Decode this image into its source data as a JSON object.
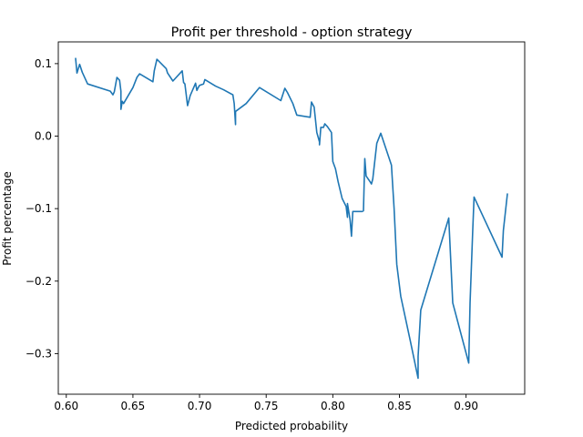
{
  "chart_data": {
    "type": "line",
    "title": "Profit per threshold - option strategy",
    "xlabel": "Predicted probability",
    "ylabel": "Profit percentage",
    "xlim": [
      0.594,
      0.944
    ],
    "ylim": [
      -0.356,
      0.13
    ],
    "xticks": [
      0.6,
      0.65,
      0.7,
      0.75,
      0.8,
      0.85,
      0.9
    ],
    "xtick_labels": [
      "0.60",
      "0.65",
      "0.70",
      "0.75",
      "0.80",
      "0.85",
      "0.90"
    ],
    "yticks": [
      0.1,
      0.0,
      -0.1,
      -0.2,
      -0.3
    ],
    "ytick_labels": [
      "0.1",
      "0.0",
      "−0.1",
      "−0.2",
      "−0.3"
    ],
    "grid": false,
    "line_color": "#1f77b4",
    "series": [
      {
        "x": [
          0.607,
          0.608,
          0.61,
          0.612,
          0.616,
          0.633,
          0.635,
          0.636,
          0.638,
          0.64,
          0.641,
          0.641,
          0.642,
          0.643,
          0.65,
          0.653,
          0.655,
          0.665,
          0.666,
          0.668,
          0.675,
          0.676,
          0.68,
          0.687,
          0.688,
          0.689,
          0.691,
          0.693,
          0.697,
          0.698,
          0.699,
          0.7,
          0.703,
          0.704,
          0.712,
          0.718,
          0.725,
          0.726,
          0.727,
          0.727,
          0.735,
          0.745,
          0.761,
          0.764,
          0.766,
          0.77,
          0.773,
          0.783,
          0.784,
          0.786,
          0.788,
          0.79,
          0.79,
          0.791,
          0.793,
          0.794,
          0.796,
          0.799,
          0.8,
          0.802,
          0.804,
          0.807,
          0.81,
          0.811,
          0.811,
          0.813,
          0.814,
          0.815,
          0.822,
          0.823,
          0.824,
          0.825,
          0.828,
          0.829,
          0.83,
          0.833,
          0.836,
          0.844,
          0.846,
          0.848,
          0.851,
          0.858,
          0.864,
          0.864,
          0.866,
          0.887,
          0.89,
          0.902,
          0.903,
          0.905,
          0.906,
          0.927,
          0.928,
          0.931
        ],
        "y": [
          0.107,
          0.087,
          0.099,
          0.088,
          0.072,
          0.062,
          0.057,
          0.061,
          0.081,
          0.077,
          0.062,
          0.037,
          0.048,
          0.045,
          0.067,
          0.081,
          0.086,
          0.075,
          0.09,
          0.106,
          0.093,
          0.087,
          0.076,
          0.09,
          0.074,
          0.072,
          0.042,
          0.056,
          0.073,
          0.063,
          0.067,
          0.07,
          0.072,
          0.078,
          0.069,
          0.064,
          0.057,
          0.045,
          0.016,
          0.034,
          0.045,
          0.067,
          0.049,
          0.066,
          0.06,
          0.045,
          0.029,
          0.026,
          0.047,
          0.04,
          0.005,
          -0.008,
          -0.012,
          0.012,
          0.012,
          0.017,
          0.013,
          0.005,
          -0.035,
          -0.045,
          -0.063,
          -0.086,
          -0.097,
          -0.112,
          -0.093,
          -0.116,
          -0.138,
          -0.104,
          -0.104,
          -0.103,
          -0.031,
          -0.055,
          -0.063,
          -0.066,
          -0.059,
          -0.01,
          0.004,
          -0.04,
          -0.1,
          -0.177,
          -0.221,
          -0.281,
          -0.334,
          -0.304,
          -0.24,
          -0.113,
          -0.23,
          -0.313,
          -0.23,
          -0.13,
          -0.084,
          -0.167,
          -0.13,
          -0.08
        ]
      }
    ]
  }
}
